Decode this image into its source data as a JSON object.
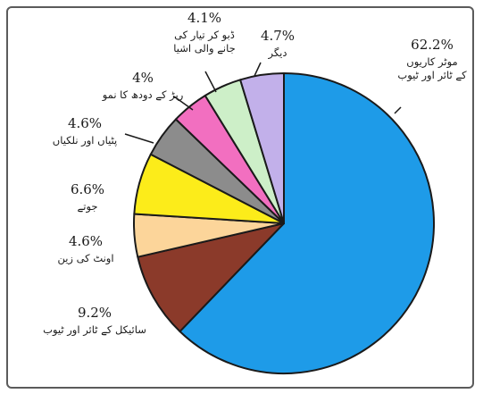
{
  "chart_data": {
    "type": "pie",
    "slices": [
      {
        "label": "موٹر کاریوں کے ٹائر اور ٹیوب",
        "label_lines": [
          "موٹر کاریوں",
          "کے ٹائر اور ٹیوب"
        ],
        "value": 62.2,
        "value_text": "62.2%",
        "color": "#1e9be8"
      },
      {
        "label": "سائیکل کے ٹائر اور ٹیوب",
        "label_lines": [
          "سائیکل کے ٹائر اور ٹیوب"
        ],
        "value": 9.2,
        "value_text": "9.2%",
        "color": "#8b3a2a"
      },
      {
        "label": "اونٹ کی زین",
        "label_lines": [
          "اونٹ کی زین"
        ],
        "value": 4.6,
        "value_text": "4.6%",
        "color": "#fcd59a"
      },
      {
        "label": "جوتے",
        "label_lines": [
          "جوتے"
        ],
        "value": 6.6,
        "value_text": "6.6%",
        "color": "#fcec1a"
      },
      {
        "label": "پٹیاں اور نلکیاں",
        "label_lines": [
          "پٹیاں اور نلکیاں"
        ],
        "value": 4.6,
        "value_text": "4.6%",
        "color": "#8c8c8c"
      },
      {
        "label": "ربڑ کے دودھ کا نمو",
        "label_lines": [
          "ربڑ کے دودھ کا نمو"
        ],
        "value": 4,
        "value_text": "4%",
        "color": "#f26fc0"
      },
      {
        "label": "ڈبو کر تیار کی جانے والی اشیا",
        "label_lines": [
          "ڈبو کر تیار کی",
          "جانے والی اشیا"
        ],
        "value": 4.1,
        "value_text": "4.1%",
        "color": "#cdefc8"
      },
      {
        "label": "دیگر",
        "label_lines": [
          "دیگر"
        ],
        "value": 4.7,
        "value_text": "4.7%",
        "color": "#c2b0ea"
      }
    ],
    "title": "",
    "legend": "none"
  }
}
